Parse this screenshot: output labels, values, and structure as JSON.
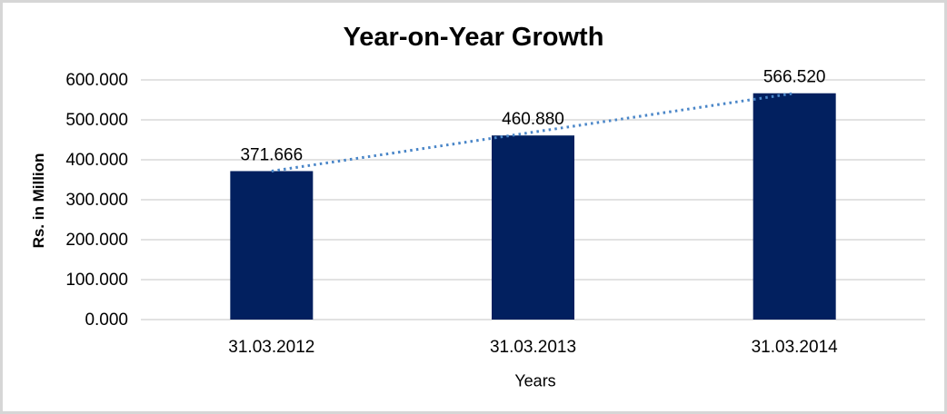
{
  "chart": {
    "title": "Year-on-Year Growth",
    "y_axis_title": "Rs. in Million",
    "x_axis_title": "Years"
  },
  "chart_data": {
    "type": "bar",
    "title": "Year-on-Year Growth",
    "xlabel": "Years",
    "ylabel": "Rs. in Million",
    "categories": [
      "31.03.2012",
      "31.03.2013",
      "31.03.2014"
    ],
    "values": [
      371.666,
      460.88,
      566.52
    ],
    "value_labels": [
      "371.666",
      "460.880",
      "566.520"
    ],
    "ytick_labels": [
      "0.000",
      "100.000",
      "200.000",
      "300.000",
      "400.000",
      "500.000",
      "600.000"
    ],
    "ytick_values": [
      0,
      100,
      200,
      300,
      400,
      500,
      600
    ],
    "ylim": [
      0,
      600
    ],
    "grid": true,
    "legend": "none",
    "trendline": {
      "style": "dotted",
      "from_point": 0,
      "to_point": 2
    },
    "colors": {
      "bar": "#02205f",
      "trendline": "#4a86c8",
      "gridline": "#d9d9d9",
      "text": "#000000",
      "frame_border": "#d6d6d6",
      "background": "#ffffff"
    }
  }
}
